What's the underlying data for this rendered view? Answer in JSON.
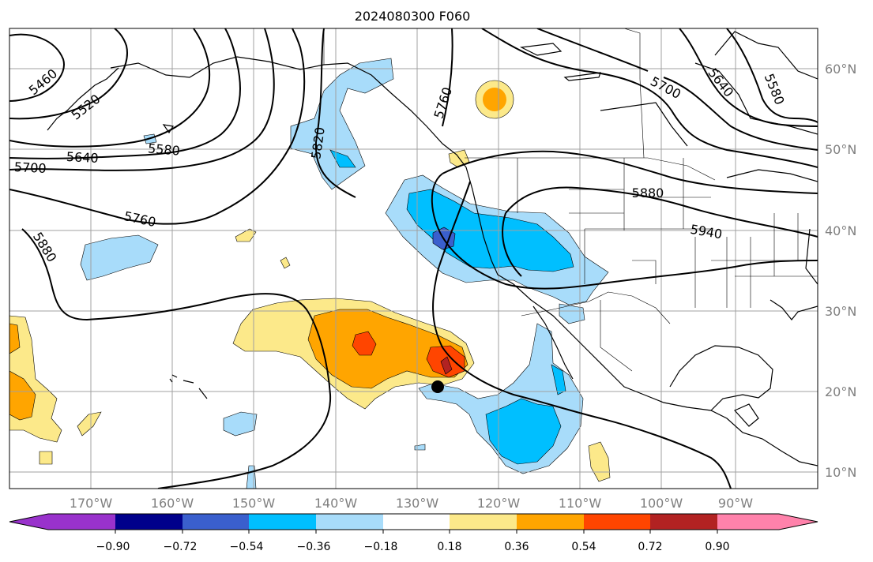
{
  "title": "2024080300 F060",
  "map": {
    "lon_labels": [
      "170°W",
      "160°W",
      "150°W",
      "140°W",
      "130°W",
      "120°W",
      "110°W",
      "100°W",
      "90°W"
    ],
    "lat_labels": [
      "60°N",
      "50°N",
      "40°N",
      "30°N",
      "20°N",
      "10°N"
    ],
    "contour_labels": [
      "5460",
      "5520",
      "5580",
      "5640",
      "5700",
      "5760",
      "5820",
      "5880",
      "5940",
      "5760",
      "5700",
      "5640",
      "5580",
      "5880"
    ],
    "colors": {
      "neg_090": "#9932cc",
      "neg_072": "#00008b",
      "neg_054": "#3a5fcd",
      "neg_036": "#00bfff",
      "neg_018": "#a8dcfa",
      "zero": "#ffffff",
      "pos_018": "#fce98a",
      "pos_036": "#ffa500",
      "pos_054": "#ff4500",
      "pos_072": "#b22222",
      "pos_090": "#ff82ab"
    },
    "marker": "storm-position-dot"
  },
  "colorbar": {
    "tick_labels": [
      "−0.90",
      "−0.72",
      "−0.54",
      "−0.36",
      "−0.18",
      "0.18",
      "0.36",
      "0.54",
      "0.72",
      "0.90"
    ],
    "colors": [
      "#9932cc",
      "#00008b",
      "#3a5fcd",
      "#00bfff",
      "#a8dcfa",
      "#ffffff",
      "#fce98a",
      "#ffa500",
      "#ff4500",
      "#b22222",
      "#ff82ab"
    ]
  }
}
